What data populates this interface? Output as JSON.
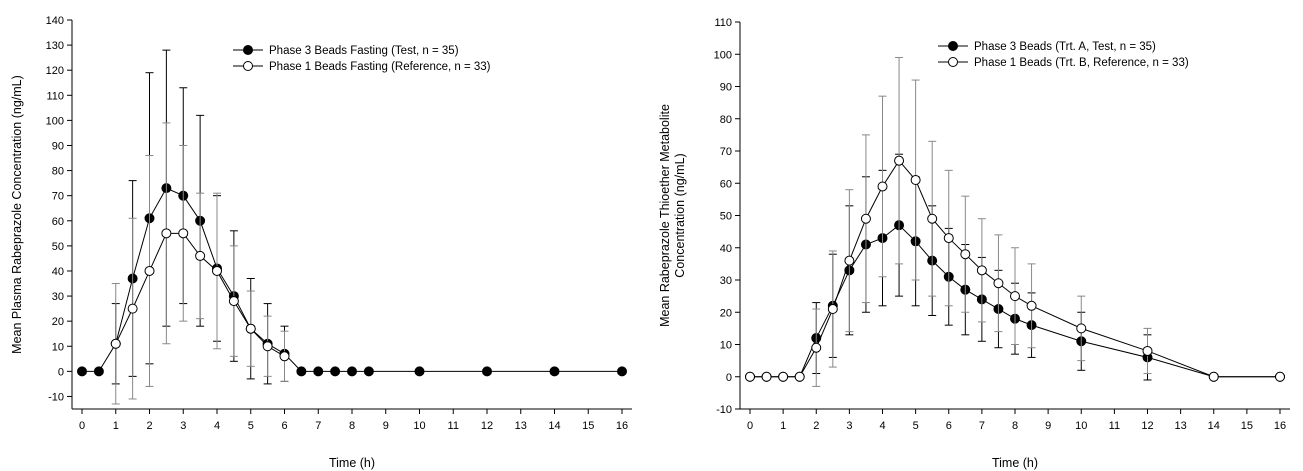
{
  "chart_data": [
    {
      "type": "line",
      "xlabel": "Time (h)",
      "ylabel": "Mean Plasma Rabeprazole Concentration (ng/mL)",
      "xlim": [
        0,
        16
      ],
      "ylim": [
        -15,
        140
      ],
      "xticks": [
        0,
        1,
        2,
        3,
        4,
        5,
        6,
        7,
        8,
        9,
        10,
        11,
        12,
        13,
        14,
        15,
        16
      ],
      "yticks": [
        -10,
        0,
        10,
        20,
        30,
        40,
        50,
        60,
        70,
        80,
        90,
        100,
        110,
        120,
        130,
        140
      ],
      "legend": "top-right",
      "series": [
        {
          "name": "Phase 3 Beads Fasting (Test, n = 35)",
          "marker": "filled",
          "x": [
            0,
            0.5,
            1,
            1.5,
            2,
            2.5,
            3,
            3.5,
            4,
            4.5,
            5,
            5.5,
            6,
            6.5,
            7,
            7.5,
            8,
            8.5,
            10,
            12,
            14,
            16
          ],
          "y": [
            0,
            0,
            11,
            37,
            61,
            73,
            70,
            60,
            41,
            30,
            17,
            11,
            7,
            0,
            0,
            0,
            0,
            0,
            0,
            0,
            0,
            0
          ],
          "err": [
            0,
            0,
            16,
            39,
            58,
            55,
            43,
            42,
            29,
            26,
            20,
            16,
            11,
            0,
            0,
            0,
            0,
            0,
            0,
            0,
            0,
            0
          ]
        },
        {
          "name": "Phase 1 Beads Fasting (Reference, n = 33)",
          "marker": "open",
          "x": [
            1,
            1.5,
            2,
            2.5,
            3,
            3.5,
            4,
            4.5,
            5,
            5.5,
            6
          ],
          "y": [
            11,
            25,
            40,
            55,
            55,
            46,
            40,
            28,
            17,
            10,
            6
          ],
          "err": [
            24,
            36,
            46,
            44,
            35,
            25,
            31,
            22,
            15,
            12,
            10
          ]
        }
      ]
    },
    {
      "type": "line",
      "xlabel": "Time (h)",
      "ylabel": "Mean Rabeprazole Thioether Metabolite Concentration (ng/mL)",
      "ylabel_lines": [
        "Mean Rabeprazole Thioether Metabolite",
        "Concentration (ng/mL)"
      ],
      "xlim": [
        0,
        16
      ],
      "ylim": [
        -10,
        110
      ],
      "xticks": [
        0,
        1,
        2,
        3,
        4,
        5,
        6,
        7,
        8,
        9,
        10,
        11,
        12,
        13,
        14,
        15,
        16
      ],
      "yticks": [
        -10,
        0,
        10,
        20,
        30,
        40,
        50,
        60,
        70,
        80,
        90,
        100,
        110
      ],
      "legend": "top-right",
      "series": [
        {
          "name": "Phase 3 Beads (Trt. A, Test, n = 35)",
          "marker": "filled",
          "x": [
            0,
            0.5,
            1,
            1.5,
            2,
            2.5,
            3,
            3.5,
            4,
            4.5,
            5,
            5.5,
            6,
            6.5,
            7,
            7.5,
            8,
            8.5,
            10,
            12,
            14,
            16
          ],
          "y": [
            0,
            0,
            0,
            0,
            12,
            22,
            33,
            41,
            43,
            47,
            42,
            36,
            31,
            27,
            24,
            21,
            18,
            16,
            11,
            6,
            0,
            0
          ],
          "err": [
            0,
            0,
            0,
            0,
            11,
            16,
            20,
            21,
            21,
            22,
            20,
            17,
            15,
            14,
            13,
            12,
            11,
            10,
            9,
            7,
            0,
            0
          ]
        },
        {
          "name": "Phase 1 Beads (Trt. B, Reference, n = 33)",
          "marker": "open",
          "x": [
            0,
            0.5,
            1,
            1.5,
            2,
            2.5,
            3,
            3.5,
            4,
            4.5,
            5,
            5.5,
            6,
            6.5,
            7,
            7.5,
            8,
            8.5,
            10,
            12,
            14,
            16
          ],
          "y": [
            0,
            0,
            0,
            0,
            9,
            21,
            36,
            49,
            59,
            67,
            61,
            49,
            43,
            38,
            33,
            29,
            25,
            22,
            15,
            8,
            0,
            0
          ],
          "err": [
            0,
            0,
            0,
            0,
            12,
            18,
            22,
            26,
            28,
            32,
            31,
            24,
            21,
            18,
            16,
            15,
            15,
            13,
            10,
            7,
            0,
            0
          ]
        }
      ]
    }
  ]
}
